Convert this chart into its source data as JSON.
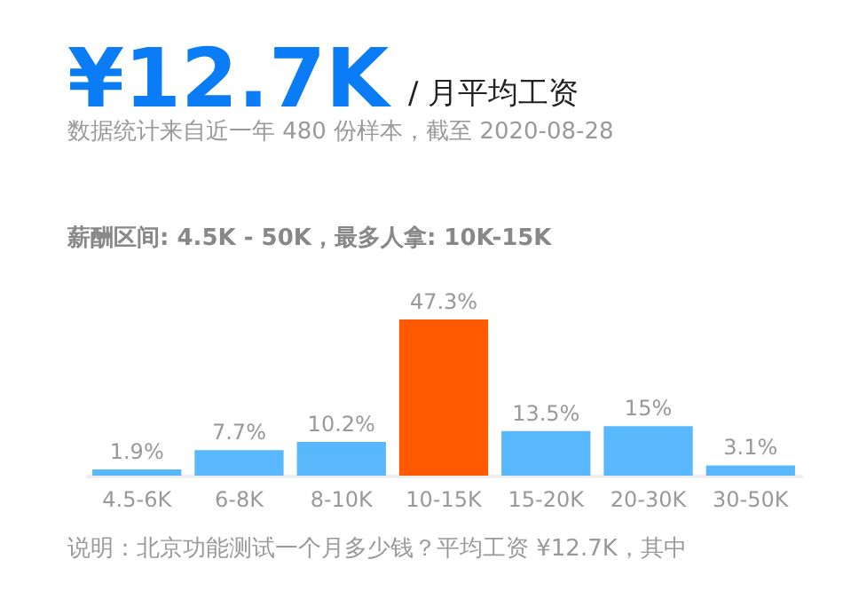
{
  "chart_data": {
    "type": "bar",
    "title": "¥12.7K",
    "subtitle": "/ 月平均工资",
    "annotations": [
      "数据统计来自近一年 480 份样本，截至 2020-08-28",
      "薪酬区间: 4.5K - 50K，最多人拿: 10K-15K",
      "说明：北京功能测试一个月多少钱？平均工资 ¥12.7K，其中"
    ],
    "categories": [
      "4.5-6K",
      "6-8K",
      "8-10K",
      "10-15K",
      "15-20K",
      "20-30K",
      "30-50K"
    ],
    "values": [
      1.9,
      7.7,
      10.2,
      47.3,
      13.5,
      15,
      3.1
    ],
    "colors": [
      "#59b8fb",
      "#59b8fb",
      "#59b8fb",
      "#ff5a00",
      "#59b8fb",
      "#59b8fb",
      "#59b8fb"
    ],
    "value_labels": [
      "1.9%",
      "7.7%",
      "10.2%",
      "47.3%",
      "13.5%",
      "15%",
      "3.1%"
    ],
    "grid": false
  }
}
